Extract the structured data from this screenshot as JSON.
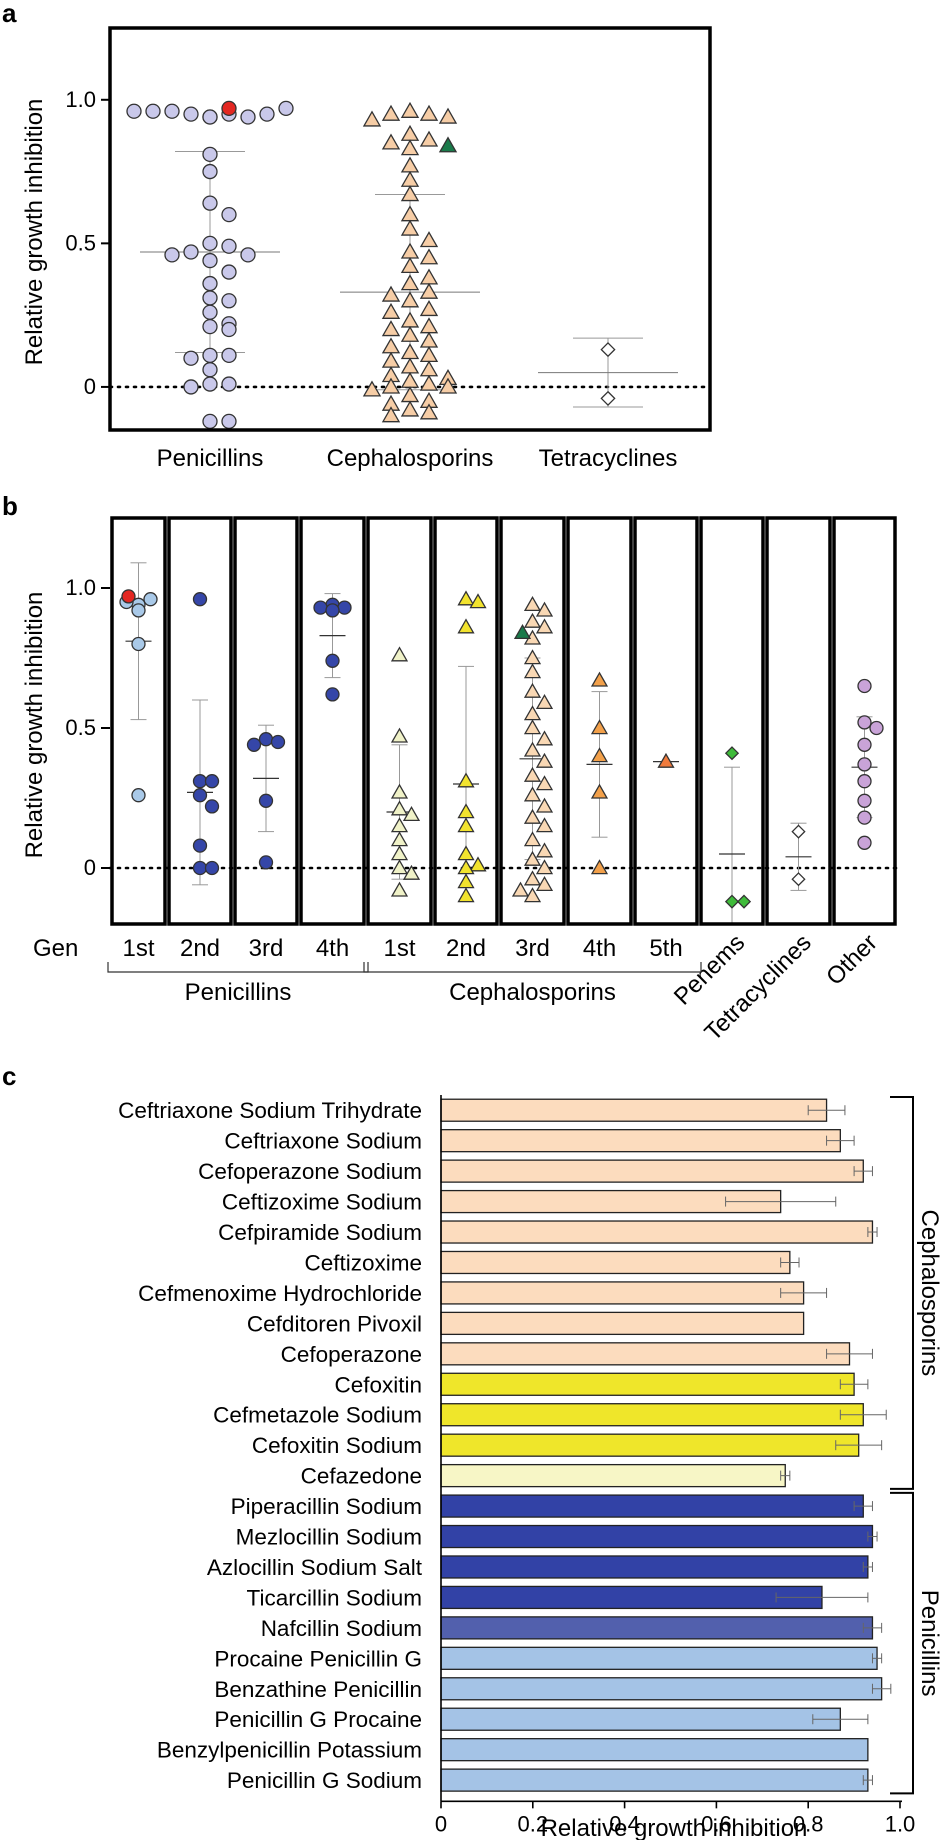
{
  "panel_letters": {
    "a": "a",
    "b": "b",
    "c": "c"
  },
  "colors": {
    "pen_gen1": "#a9c9e8",
    "pen_gen2": "#3546a8",
    "pen_gen3": "#3546a8",
    "pen_gen4": "#3546a8",
    "pen_all": "#c9c8ea",
    "ceph_all": "#f6cda6",
    "ceph_gen1": "#f0f2c8",
    "ceph_gen2": "#f2e32e",
    "ceph_gen3": "#f9d8b4",
    "ceph_gen4": "#f2a04a",
    "ceph_gen5": "#f07b3d",
    "penem": "#3fbb3a",
    "tetra": "#ffffff",
    "other": "#c9a3d8",
    "highlight_red": "#e32722",
    "highlight_green": "#1a7a4a",
    "bar_ceph_3rd": "#fcdcbe",
    "bar_ceph_2nd": "#efe62a",
    "bar_ceph_1st": "#f7f6c6",
    "bar_pen_ext": "#3242a6",
    "bar_pen_nafc": "#5260ad",
    "bar_pen_g": "#a4c3e6"
  },
  "chart_data": [
    {
      "panel": "a",
      "type": "scatter",
      "ylabel": "Relative growth inhibition",
      "ylim": [
        -0.15,
        1.25
      ],
      "yticks": [
        {
          "v": 1.0,
          "label": "1.0"
        },
        {
          "v": 0.5,
          "label": "0.5"
        },
        {
          "v": 0,
          "label": "0"
        }
      ],
      "reference_line": 0,
      "groups": [
        {
          "name": "Penicillins",
          "marker": "circle",
          "color": "pen_all",
          "mean": 0.47,
          "sd": 0.35,
          "values": [
            0.94,
            0.95,
            0.95,
            0.94,
            0.96,
            0.95,
            0.96,
            0.97,
            0.96,
            0.94,
            0.81,
            0.75,
            0.64,
            0.6,
            0.5,
            0.49,
            0.47,
            0.46,
            0.46,
            0.44,
            0.4,
            0.36,
            0.31,
            0.3,
            0.26,
            0.22,
            0.21,
            0.2,
            0.11,
            0.11,
            0.1,
            0.06,
            0.01,
            0.01,
            0.0,
            -0.12,
            -0.12
          ],
          "highlight": {
            "value": 0.97,
            "color": "highlight_red"
          }
        },
        {
          "name": "Cephalosporins",
          "marker": "triangle",
          "color": "ceph_all",
          "mean": 0.33,
          "sd": 0.34,
          "values": [
            0.96,
            0.95,
            0.95,
            0.94,
            0.93,
            0.88,
            0.86,
            0.85,
            0.83,
            0.77,
            0.72,
            0.67,
            0.6,
            0.55,
            0.51,
            0.47,
            0.45,
            0.42,
            0.38,
            0.36,
            0.33,
            0.32,
            0.3,
            0.27,
            0.26,
            0.23,
            0.21,
            0.2,
            0.18,
            0.16,
            0.14,
            0.12,
            0.11,
            0.09,
            0.07,
            0.06,
            0.04,
            0.03,
            0.02,
            0.01,
            0.0,
            0.0,
            -0.01,
            -0.03,
            -0.05,
            -0.06,
            -0.08,
            -0.09,
            -0.1
          ],
          "highlight": {
            "value": 0.84,
            "color": "highlight_green"
          }
        },
        {
          "name": "Tetracyclines",
          "marker": "diamond",
          "color": "tetra",
          "mean": 0.05,
          "sd": 0.12,
          "values": [
            0.13,
            -0.04
          ]
        }
      ]
    },
    {
      "panel": "b",
      "type": "scatter",
      "ylabel": "Relative growth inhibition",
      "ylim": [
        -0.2,
        1.25
      ],
      "yticks": [
        {
          "v": 1.0,
          "label": "1.0"
        },
        {
          "v": 0.5,
          "label": "0.5"
        },
        {
          "v": 0,
          "label": "0"
        }
      ],
      "reference_line": 0,
      "gen_label": "Gen",
      "columns": [
        {
          "label": "1st",
          "class": "pen",
          "marker": "circle",
          "color": "pen_gen1",
          "mean": 0.81,
          "sd": 0.28,
          "values": [
            0.94,
            0.96,
            0.95,
            0.92,
            0.8,
            0.26
          ],
          "highlight": {
            "value": 0.97,
            "color": "highlight_red"
          }
        },
        {
          "label": "2nd",
          "class": "pen",
          "marker": "circle",
          "color": "pen_gen2",
          "mean": 0.27,
          "sd": 0.33,
          "values": [
            0.96,
            0.31,
            0.31,
            0.26,
            0.22,
            0.08,
            0.0,
            0.0
          ]
        },
        {
          "label": "3rd",
          "class": "pen",
          "marker": "circle",
          "color": "pen_gen3",
          "mean": 0.32,
          "sd": 0.19,
          "values": [
            0.46,
            0.45,
            0.44,
            0.24,
            0.02
          ]
        },
        {
          "label": "4th",
          "class": "pen",
          "marker": "circle",
          "color": "pen_gen4",
          "mean": 0.83,
          "sd": 0.15,
          "values": [
            0.94,
            0.93,
            0.93,
            0.92,
            0.74,
            0.62
          ]
        },
        {
          "label": "1st",
          "class": "ceph",
          "marker": "triangle",
          "color": "ceph_gen1",
          "mean": 0.2,
          "sd": 0.24,
          "values": [
            0.76,
            0.47,
            0.27,
            0.21,
            0.19,
            0.15,
            0.1,
            0.05,
            0.0,
            -0.02,
            -0.08
          ]
        },
        {
          "label": "2nd",
          "class": "ceph",
          "marker": "triangle",
          "color": "ceph_gen2",
          "mean": 0.3,
          "sd": 0.42,
          "values": [
            0.96,
            0.95,
            0.86,
            0.31,
            0.2,
            0.15,
            0.05,
            0.01,
            0.0,
            -0.05,
            -0.1
          ]
        },
        {
          "label": "3rd",
          "class": "ceph",
          "marker": "triangle",
          "color": "ceph_gen3",
          "mean": 0.39,
          "sd": 0.36,
          "values": [
            0.94,
            0.92,
            0.88,
            0.86,
            0.82,
            0.75,
            0.7,
            0.63,
            0.59,
            0.55,
            0.5,
            0.46,
            0.42,
            0.38,
            0.33,
            0.3,
            0.26,
            0.22,
            0.18,
            0.15,
            0.1,
            0.06,
            0.03,
            0.0,
            -0.04,
            -0.06,
            -0.08,
            -0.1
          ],
          "highlight": {
            "value": 0.84,
            "color": "highlight_green"
          }
        },
        {
          "label": "4th",
          "class": "ceph",
          "marker": "triangle",
          "color": "ceph_gen4",
          "mean": 0.37,
          "sd": 0.26,
          "values": [
            0.67,
            0.5,
            0.4,
            0.27,
            0.0
          ]
        },
        {
          "label": "5th",
          "class": "ceph",
          "marker": "triangle",
          "color": "ceph_gen5",
          "mean": 0.38,
          "sd": 0.0,
          "values": [
            0.38
          ]
        },
        {
          "label": "Penems",
          "class": "penem",
          "marker": "diamond",
          "color": "penem",
          "mean": 0.05,
          "sd": 0.31,
          "values": [
            0.41,
            -0.12,
            -0.12
          ]
        },
        {
          "label": "Tetracyclines",
          "class": "tetra",
          "marker": "diamond",
          "color": "tetra",
          "mean": 0.04,
          "sd": 0.12,
          "values": [
            0.13,
            -0.04
          ]
        },
        {
          "label": "Other",
          "class": "other",
          "marker": "circle",
          "color": "other",
          "mean": 0.36,
          "sd": 0.18,
          "values": [
            0.65,
            0.52,
            0.5,
            0.44,
            0.37,
            0.31,
            0.24,
            0.18,
            0.09
          ]
        }
      ],
      "groupings": [
        {
          "label": "Penicillins",
          "from": 0,
          "to": 3
        },
        {
          "label": "Cephalosporins",
          "from": 4,
          "to": 8
        }
      ]
    },
    {
      "panel": "c",
      "type": "bar",
      "orientation": "horizontal",
      "xlabel": "Relative growth inhibition",
      "xlim": [
        0,
        1.0
      ],
      "xticks": [
        {
          "v": 0,
          "label": "0"
        },
        {
          "v": 0.2,
          "label": "0.2"
        },
        {
          "v": 0.4,
          "label": "0.4"
        },
        {
          "v": 0.6,
          "label": "0.6"
        },
        {
          "v": 0.8,
          "label": "0.8"
        },
        {
          "v": 1.0,
          "label": "1.0"
        }
      ],
      "brackets": [
        {
          "label": "Cephalosporins",
          "from": 0,
          "to": 12
        },
        {
          "label": "Penicillins",
          "from": 13,
          "to": 22
        }
      ],
      "bars": [
        {
          "label": "Ceftriaxone Sodium Trihydrate",
          "value": 0.84,
          "error": 0.04,
          "color": "bar_ceph_3rd"
        },
        {
          "label": "Ceftriaxone Sodium",
          "value": 0.87,
          "error": 0.03,
          "color": "bar_ceph_3rd"
        },
        {
          "label": "Cefoperazone Sodium",
          "value": 0.92,
          "error": 0.02,
          "color": "bar_ceph_3rd"
        },
        {
          "label": "Ceftizoxime Sodium",
          "value": 0.74,
          "error": 0.12,
          "color": "bar_ceph_3rd"
        },
        {
          "label": "Cefpiramide Sodium",
          "value": 0.94,
          "error": 0.01,
          "color": "bar_ceph_3rd"
        },
        {
          "label": "Ceftizoxime",
          "value": 0.76,
          "error": 0.02,
          "color": "bar_ceph_3rd"
        },
        {
          "label": "Cefmenoxime Hydrochloride",
          "value": 0.79,
          "error": 0.05,
          "color": "bar_ceph_3rd"
        },
        {
          "label": "Cefditoren Pivoxil",
          "value": 0.79,
          "error": 0.0,
          "color": "bar_ceph_3rd"
        },
        {
          "label": "Cefoperazone",
          "value": 0.89,
          "error": 0.05,
          "color": "bar_ceph_3rd"
        },
        {
          "label": "Cefoxitin",
          "value": 0.9,
          "error": 0.03,
          "color": "bar_ceph_2nd"
        },
        {
          "label": "Cefmetazole Sodium",
          "value": 0.92,
          "error": 0.05,
          "color": "bar_ceph_2nd"
        },
        {
          "label": "Cefoxitin Sodium",
          "value": 0.91,
          "error": 0.05,
          "color": "bar_ceph_2nd"
        },
        {
          "label": "Cefazedone",
          "value": 0.75,
          "error": 0.01,
          "color": "bar_ceph_1st"
        },
        {
          "label": "Piperacillin Sodium",
          "value": 0.92,
          "error": 0.02,
          "color": "bar_pen_ext"
        },
        {
          "label": "Mezlocillin Sodium",
          "value": 0.94,
          "error": 0.01,
          "color": "bar_pen_ext"
        },
        {
          "label": "Azlocillin Sodium Salt",
          "value": 0.93,
          "error": 0.01,
          "color": "bar_pen_ext"
        },
        {
          "label": "Ticarcillin Sodium",
          "value": 0.83,
          "error": 0.1,
          "color": "bar_pen_ext"
        },
        {
          "label": "Nafcillin Sodium",
          "value": 0.94,
          "error": 0.02,
          "color": "bar_pen_nafc"
        },
        {
          "label": "Procaine Penicillin G",
          "value": 0.95,
          "error": 0.01,
          "color": "bar_pen_g"
        },
        {
          "label": "Benzathine Penicillin",
          "value": 0.96,
          "error": 0.02,
          "color": "bar_pen_g"
        },
        {
          "label": "Penicillin G Procaine",
          "value": 0.87,
          "error": 0.06,
          "color": "bar_pen_g"
        },
        {
          "label": "Benzylpenicillin Potassium",
          "value": 0.93,
          "error": 0.0,
          "color": "bar_pen_g"
        },
        {
          "label": "Penicillin G Sodium",
          "value": 0.93,
          "error": 0.01,
          "color": "bar_pen_g"
        }
      ]
    }
  ]
}
